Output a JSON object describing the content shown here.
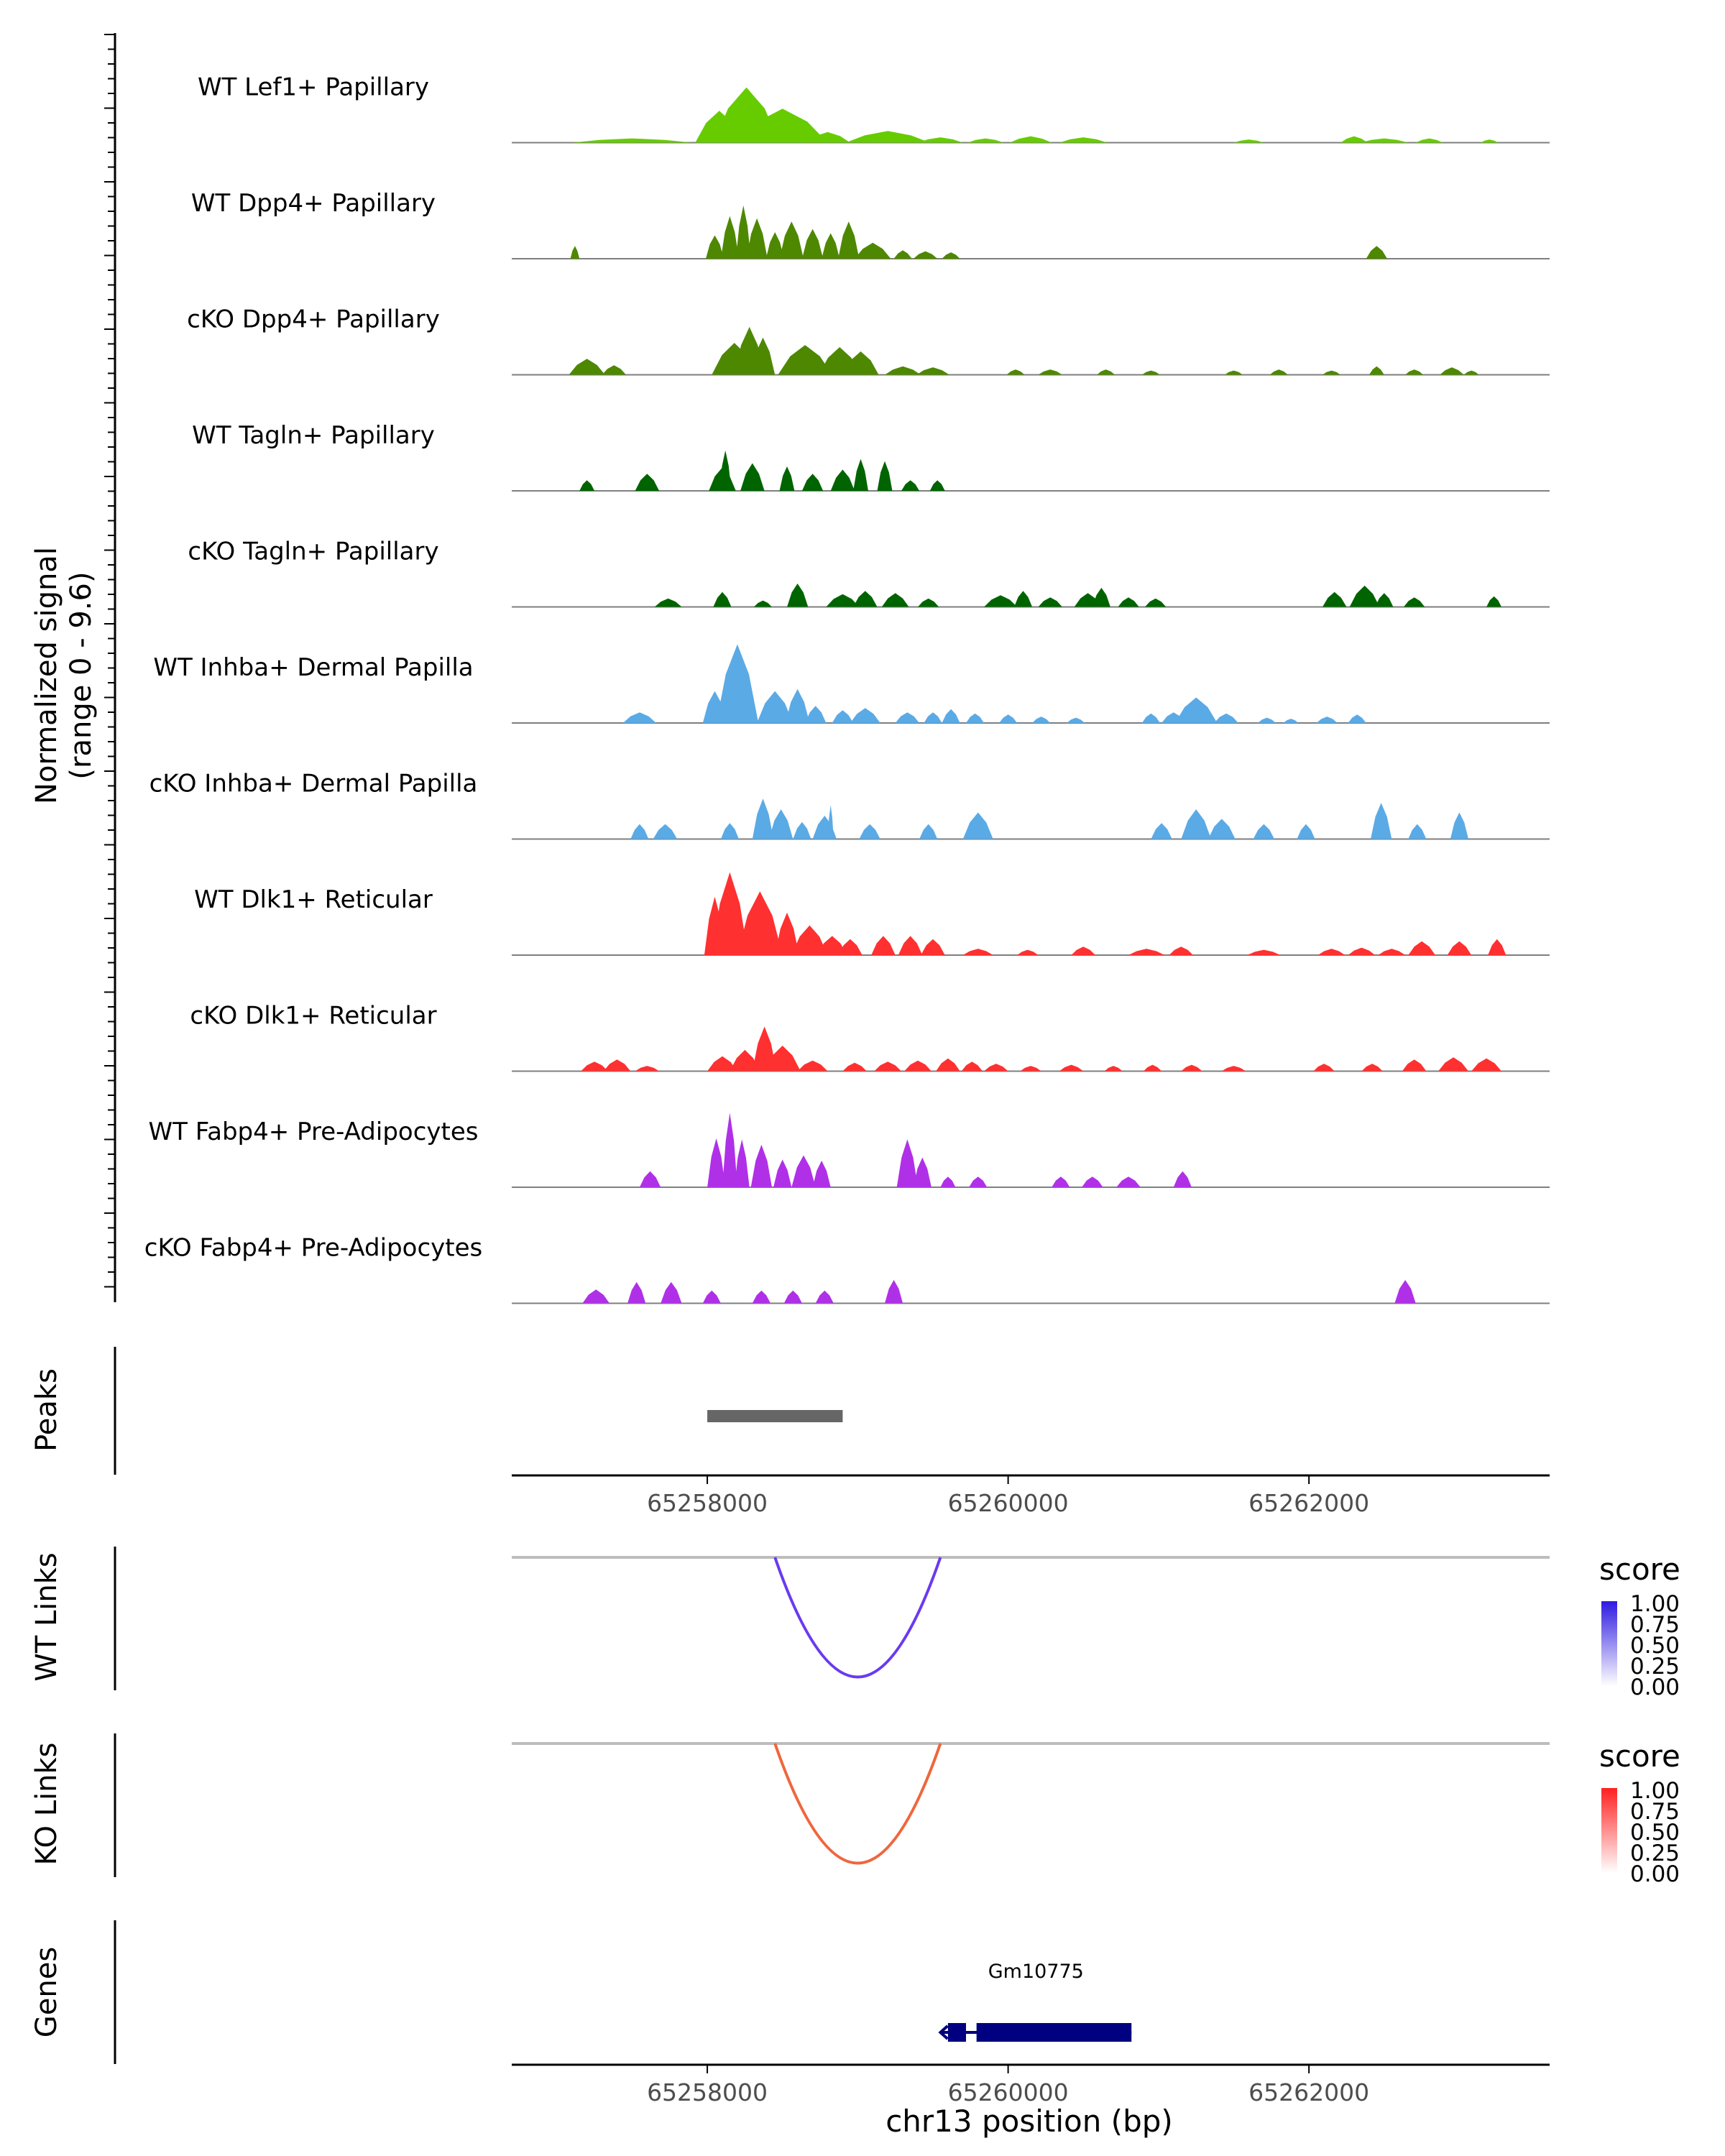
{
  "chart_data": {
    "type": "area",
    "title": "",
    "chromosome": "chr13",
    "xlabel": "chr13 position (bp)",
    "xlim": [
      65256700,
      65263600
    ],
    "x_ticks": [
      65258000,
      65260000,
      65262000
    ],
    "x_tick_labels": [
      "65258000",
      "65260000",
      "65262000"
    ],
    "coverage_ylabel": "Normalized signal",
    "coverage_yrange_label": "(range 0 - 9.6)",
    "ylim": [
      0,
      9.6
    ],
    "tracks": [
      {
        "name": "WT Lef1+ Papillary",
        "color": "#66CC00",
        "peaks": [
          [
            65257500,
            400,
            0.4
          ],
          [
            65258080,
            160,
            3.0
          ],
          [
            65258260,
            220,
            5.2
          ],
          [
            65258500,
            300,
            3.2
          ],
          [
            65258800,
            150,
            1.0
          ],
          [
            65259200,
            280,
            1.1
          ],
          [
            65259550,
            150,
            0.5
          ],
          [
            65259850,
            120,
            0.4
          ],
          [
            65260150,
            140,
            0.6
          ],
          [
            65260500,
            160,
            0.5
          ],
          [
            65261600,
            100,
            0.3
          ],
          [
            65262300,
            90,
            0.6
          ],
          [
            65262500,
            160,
            0.4
          ],
          [
            65262800,
            90,
            0.4
          ],
          [
            65263200,
            60,
            0.3
          ]
        ]
      },
      {
        "name": "WT Dpp4+ Papillary",
        "color": "#4D8800",
        "peaks": [
          [
            65257120,
            30,
            1.2
          ],
          [
            65258050,
            60,
            2.2
          ],
          [
            65258150,
            60,
            4.0
          ],
          [
            65258240,
            50,
            5.0
          ],
          [
            65258330,
            70,
            3.8
          ],
          [
            65258450,
            60,
            2.5
          ],
          [
            65258560,
            80,
            3.5
          ],
          [
            65258700,
            70,
            2.8
          ],
          [
            65258820,
            60,
            2.4
          ],
          [
            65258940,
            70,
            3.5
          ],
          [
            65259100,
            120,
            1.5
          ],
          [
            65259300,
            60,
            0.8
          ],
          [
            65259450,
            80,
            0.7
          ],
          [
            65259620,
            60,
            0.6
          ],
          [
            65262450,
            70,
            1.2
          ]
        ]
      },
      {
        "name": "cKO Dpp4+ Papillary",
        "color": "#4D8800",
        "peaks": [
          [
            65257200,
            120,
            1.5
          ],
          [
            65257380,
            80,
            0.9
          ],
          [
            65258180,
            150,
            3.0
          ],
          [
            65258280,
            100,
            4.5
          ],
          [
            65258370,
            80,
            3.5
          ],
          [
            65258650,
            180,
            2.8
          ],
          [
            65258880,
            140,
            2.6
          ],
          [
            65259020,
            120,
            2.2
          ],
          [
            65259300,
            120,
            0.8
          ],
          [
            65259500,
            110,
            0.7
          ],
          [
            65260050,
            60,
            0.5
          ],
          [
            65260280,
            80,
            0.5
          ],
          [
            65260650,
            60,
            0.5
          ],
          [
            65260950,
            60,
            0.4
          ],
          [
            65261500,
            60,
            0.4
          ],
          [
            65261800,
            60,
            0.5
          ],
          [
            65262150,
            60,
            0.4
          ],
          [
            65262450,
            50,
            0.8
          ],
          [
            65262700,
            60,
            0.5
          ],
          [
            65262950,
            80,
            0.7
          ],
          [
            65263080,
            50,
            0.4
          ]
        ]
      },
      {
        "name": "WT Tagln+ Papillary",
        "color": "#006400",
        "peaks": [
          [
            65257200,
            50,
            1.0
          ],
          [
            65257600,
            80,
            1.6
          ],
          [
            65258100,
            90,
            2.2
          ],
          [
            65258120,
            40,
            3.8
          ],
          [
            65258300,
            80,
            2.6
          ],
          [
            65258530,
            50,
            2.3
          ],
          [
            65258700,
            70,
            1.6
          ],
          [
            65258900,
            80,
            2.0
          ],
          [
            65259020,
            50,
            3.0
          ],
          [
            65259180,
            50,
            2.8
          ],
          [
            65259350,
            60,
            1.0
          ],
          [
            65259530,
            50,
            1.0
          ]
        ]
      },
      {
        "name": "cKO Tagln+ Papillary",
        "color": "#006400",
        "peaks": [
          [
            65257740,
            90,
            0.8
          ],
          [
            65258100,
            60,
            1.4
          ],
          [
            65258370,
            60,
            0.6
          ],
          [
            65258600,
            70,
            2.2
          ],
          [
            65258900,
            110,
            1.2
          ],
          [
            65259050,
            80,
            1.5
          ],
          [
            65259250,
            90,
            1.3
          ],
          [
            65259470,
            70,
            0.8
          ],
          [
            65259950,
            110,
            1.1
          ],
          [
            65260100,
            60,
            1.5
          ],
          [
            65260280,
            80,
            0.9
          ],
          [
            65260530,
            90,
            1.3
          ],
          [
            65260620,
            60,
            1.8
          ],
          [
            65260800,
            70,
            0.9
          ],
          [
            65260980,
            70,
            0.8
          ],
          [
            65262170,
            80,
            1.4
          ],
          [
            65262370,
            100,
            2.0
          ],
          [
            65262500,
            60,
            1.3
          ],
          [
            65262700,
            70,
            0.9
          ],
          [
            65263230,
            50,
            1.0
          ]
        ]
      },
      {
        "name": "WT Inhba+ Dermal Papilla",
        "color": "#5AAAE6",
        "peaks": [
          [
            65257550,
            110,
            1.0
          ],
          [
            65258050,
            80,
            3.0
          ],
          [
            65258200,
            140,
            7.4
          ],
          [
            65258450,
            120,
            3.0
          ],
          [
            65258600,
            80,
            3.2
          ],
          [
            65258720,
            70,
            1.6
          ],
          [
            65258900,
            70,
            1.2
          ],
          [
            65259050,
            100,
            1.4
          ],
          [
            65259330,
            80,
            1.0
          ],
          [
            65259500,
            60,
            1.0
          ],
          [
            65259620,
            60,
            1.3
          ],
          [
            65259780,
            60,
            0.9
          ],
          [
            65260000,
            60,
            0.8
          ],
          [
            65260220,
            60,
            0.6
          ],
          [
            65260450,
            60,
            0.5
          ],
          [
            65260950,
            60,
            0.9
          ],
          [
            65261100,
            80,
            1.0
          ],
          [
            65261250,
            140,
            2.4
          ],
          [
            65261450,
            80,
            0.9
          ],
          [
            65261720,
            60,
            0.5
          ],
          [
            65261880,
            50,
            0.4
          ],
          [
            65262120,
            70,
            0.6
          ],
          [
            65262320,
            60,
            0.8
          ]
        ]
      },
      {
        "name": "cKO Inhba+ Dermal Papilla",
        "color": "#5AAAE6",
        "peaks": [
          [
            65257550,
            60,
            1.4
          ],
          [
            65257720,
            80,
            1.4
          ],
          [
            65258150,
            60,
            1.5
          ],
          [
            65258370,
            70,
            3.8
          ],
          [
            65258490,
            80,
            2.8
          ],
          [
            65258630,
            60,
            1.6
          ],
          [
            65258780,
            80,
            2.2
          ],
          [
            65258820,
            20,
            3.2
          ],
          [
            65259080,
            70,
            1.4
          ],
          [
            65259470,
            60,
            1.4
          ],
          [
            65259800,
            100,
            2.5
          ],
          [
            65261020,
            70,
            1.5
          ],
          [
            65261250,
            100,
            2.8
          ],
          [
            65261420,
            90,
            1.9
          ],
          [
            65261700,
            70,
            1.4
          ],
          [
            65261980,
            60,
            1.4
          ],
          [
            65262480,
            70,
            3.4
          ],
          [
            65262720,
            60,
            1.4
          ],
          [
            65263000,
            60,
            2.5
          ]
        ]
      },
      {
        "name": "WT Dlk1+ Reticular",
        "color": "#FF3030",
        "peaks": [
          [
            65258050,
            70,
            5.5
          ],
          [
            65258150,
            120,
            7.8
          ],
          [
            65258350,
            150,
            6.0
          ],
          [
            65258530,
            80,
            4.0
          ],
          [
            65258680,
            120,
            2.8
          ],
          [
            65258830,
            100,
            1.8
          ],
          [
            65258950,
            80,
            1.5
          ],
          [
            65259170,
            80,
            1.8
          ],
          [
            65259350,
            80,
            1.8
          ],
          [
            65259500,
            80,
            1.5
          ],
          [
            65259800,
            100,
            0.6
          ],
          [
            65260130,
            70,
            0.5
          ],
          [
            65260500,
            80,
            0.8
          ],
          [
            65260920,
            120,
            0.6
          ],
          [
            65261150,
            80,
            0.8
          ],
          [
            65261700,
            110,
            0.5
          ],
          [
            65262150,
            90,
            0.6
          ],
          [
            65262350,
            90,
            0.7
          ],
          [
            65262550,
            90,
            0.6
          ],
          [
            65262750,
            90,
            1.3
          ],
          [
            65263000,
            80,
            1.3
          ],
          [
            65263250,
            60,
            1.5
          ]
        ]
      },
      {
        "name": "cKO Dlk1+ Reticular",
        "color": "#FF3030",
        "peaks": [
          [
            65257250,
            90,
            0.9
          ],
          [
            65257400,
            90,
            1.1
          ],
          [
            65257600,
            80,
            0.5
          ],
          [
            65258100,
            100,
            1.4
          ],
          [
            65258250,
            100,
            2.0
          ],
          [
            65258380,
            80,
            4.2
          ],
          [
            65258500,
            120,
            2.4
          ],
          [
            65258700,
            100,
            1.0
          ],
          [
            65258980,
            80,
            0.8
          ],
          [
            65259200,
            90,
            0.9
          ],
          [
            65259400,
            90,
            1.0
          ],
          [
            65259600,
            80,
            1.2
          ],
          [
            65259760,
            70,
            0.9
          ],
          [
            65259920,
            80,
            0.7
          ],
          [
            65260150,
            70,
            0.5
          ],
          [
            65260420,
            80,
            0.6
          ],
          [
            65260700,
            60,
            0.5
          ],
          [
            65260960,
            60,
            0.6
          ],
          [
            65261220,
            70,
            0.6
          ],
          [
            65261500,
            80,
            0.5
          ],
          [
            65262100,
            70,
            0.7
          ],
          [
            65262420,
            70,
            0.7
          ],
          [
            65262700,
            80,
            1.1
          ],
          [
            65262960,
            100,
            1.3
          ],
          [
            65263180,
            100,
            1.2
          ]
        ]
      },
      {
        "name": "WT Fabp4+ Pre-Adipocytes",
        "color": "#B030E8",
        "peaks": [
          [
            65257620,
            70,
            1.5
          ],
          [
            65258060,
            60,
            4.6
          ],
          [
            65258150,
            50,
            7.0
          ],
          [
            65258230,
            50,
            4.5
          ],
          [
            65258360,
            70,
            4.0
          ],
          [
            65258500,
            60,
            2.6
          ],
          [
            65258640,
            80,
            3.0
          ],
          [
            65258760,
            60,
            2.5
          ],
          [
            65259330,
            70,
            4.5
          ],
          [
            65259430,
            60,
            2.8
          ],
          [
            65259600,
            50,
            1.0
          ],
          [
            65259800,
            60,
            1.0
          ],
          [
            65260350,
            60,
            1.0
          ],
          [
            65260560,
            70,
            1.0
          ],
          [
            65260800,
            80,
            1.0
          ],
          [
            65261160,
            60,
            1.5
          ]
        ]
      },
      {
        "name": "cKO Fabp4+ Pre-Adipocytes",
        "color": "#B030E8",
        "peaks": [
          [
            65257260,
            90,
            1.3
          ],
          [
            65257530,
            60,
            2.0
          ],
          [
            65257760,
            70,
            2.0
          ],
          [
            65258030,
            60,
            1.2
          ],
          [
            65258360,
            60,
            1.2
          ],
          [
            65258570,
            60,
            1.2
          ],
          [
            65258780,
            60,
            1.2
          ],
          [
            65259240,
            60,
            2.2
          ],
          [
            65262640,
            70,
            2.2
          ]
        ]
      }
    ],
    "peaks_track": {
      "label": "Peaks",
      "regions": [
        [
          65258000,
          65258900
        ]
      ],
      "color": "#666666"
    },
    "links": [
      {
        "label": "WT Links",
        "start": 65258450,
        "end": 65259550,
        "score": 0.8,
        "color": "#6A3AF0",
        "legend_title": "score",
        "legend_labels": [
          "1.00",
          "0.75",
          "0.50",
          "0.25",
          "0.00"
        ],
        "legend_color": "#2E1AE0"
      },
      {
        "label": "KO Links",
        "start": 65258450,
        "end": 65259550,
        "score": 0.75,
        "color": "#F0663C",
        "legend_title": "score",
        "legend_labels": [
          "1.00",
          "0.75",
          "0.50",
          "0.25",
          "0.00"
        ],
        "legend_color": "#FF2020"
      }
    ],
    "genes_track": {
      "label": "Genes",
      "gene_name": "Gm10775",
      "color": "#000080",
      "strand": "-",
      "start": 65259550,
      "end": 65260820,
      "exons": [
        [
          65259600,
          65259720
        ],
        [
          65259790,
          65260820
        ]
      ]
    }
  }
}
